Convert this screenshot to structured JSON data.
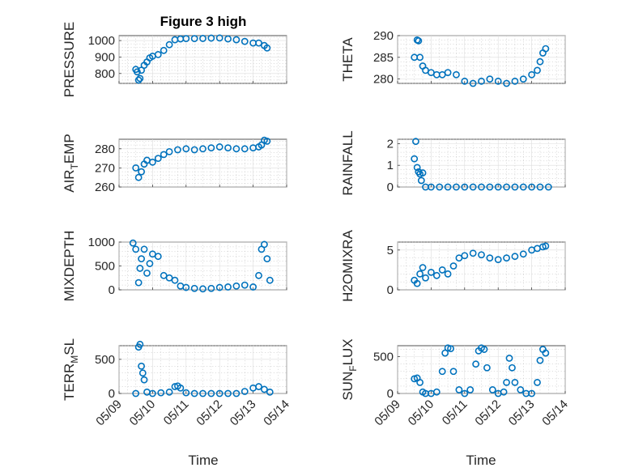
{
  "colors": {
    "marker": "#0072BD",
    "axes": "#262626"
  },
  "chart_data": [
    {
      "type": "scatter",
      "title": "Figure 3 high",
      "ylabel": "PRESSURE",
      "ylim": [
        740,
        1030
      ],
      "yticks": [
        800,
        900,
        1000
      ],
      "xlim": [
        "05/09",
        "05/14"
      ],
      "grid": true,
      "x": [
        "05/09 12:00",
        "05/09 13:00",
        "05/09 14:00",
        "05/09 15:00",
        "05/09 16:00",
        "05/09 18:00",
        "05/09 20:00",
        "05/09 22:00",
        "05/10 00:00",
        "05/10 04:00",
        "05/10 08:00",
        "05/10 12:00",
        "05/10 16:00",
        "05/10 20:00",
        "05/11 00:00",
        "05/11 06:00",
        "05/11 12:00",
        "05/11 18:00",
        "05/12 00:00",
        "05/12 06:00",
        "05/12 12:00",
        "05/12 18:00",
        "05/13 00:00",
        "05/13 04:00",
        "05/13 08:00",
        "05/13 10:00"
      ],
      "y": [
        825,
        810,
        760,
        770,
        820,
        850,
        870,
        895,
        905,
        915,
        940,
        975,
        1005,
        1010,
        1012,
        1012,
        1013,
        1015,
        1016,
        1010,
        1005,
        995,
        985,
        985,
        970,
        955
      ]
    },
    {
      "type": "scatter",
      "title": "",
      "ylabel": "THETA",
      "ylim": [
        279,
        290
      ],
      "yticks": [
        280,
        285,
        290
      ],
      "xlim": [
        "05/09",
        "05/14"
      ],
      "grid": true,
      "x": [
        "05/09 12:00",
        "05/09 14:00",
        "05/09 15:00",
        "05/09 16:00",
        "05/09 18:00",
        "05/09 20:00",
        "05/10 00:00",
        "05/10 04:00",
        "05/10 08:00",
        "05/10 12:00",
        "05/10 18:00",
        "05/11 00:00",
        "05/11 06:00",
        "05/11 12:00",
        "05/11 18:00",
        "05/12 00:00",
        "05/12 06:00",
        "05/12 12:00",
        "05/12 18:00",
        "05/13 00:00",
        "05/13 04:00",
        "05/13 06:00",
        "05/13 08:00",
        "05/13 10:00"
      ],
      "y": [
        285,
        289,
        288.8,
        285,
        283,
        282,
        281.5,
        281,
        281,
        281.5,
        281,
        279.5,
        279,
        279.5,
        280,
        279.5,
        279,
        279.5,
        280,
        281,
        282,
        284,
        286,
        287
      ]
    },
    {
      "type": "scatter",
      "title": "",
      "ylabel": "AIR_TEMP",
      "ylim": [
        260,
        285
      ],
      "yticks": [
        260,
        270,
        280
      ],
      "xlim": [
        "05/09",
        "05/14"
      ],
      "grid": true,
      "x": [
        "05/09 12:00",
        "05/09 14:00",
        "05/09 16:00",
        "05/09 18:00",
        "05/09 20:00",
        "05/10 00:00",
        "05/10 04:00",
        "05/10 08:00",
        "05/10 12:00",
        "05/10 18:00",
        "05/11 00:00",
        "05/11 06:00",
        "05/11 12:00",
        "05/11 18:00",
        "05/12 00:00",
        "05/12 06:00",
        "05/12 12:00",
        "05/12 18:00",
        "05/13 00:00",
        "05/13 04:00",
        "05/13 06:00",
        "05/13 08:00",
        "05/13 10:00"
      ],
      "y": [
        270,
        265,
        268,
        272,
        274,
        273,
        275,
        277,
        278.5,
        279.5,
        280,
        279.5,
        280,
        280.5,
        281,
        280.5,
        280,
        280,
        280.5,
        281,
        282,
        284.5,
        284
      ]
    },
    {
      "type": "scatter",
      "title": "",
      "ylabel": "RAINFALL",
      "ylim": [
        0,
        2.2
      ],
      "yticks": [
        0,
        1,
        2
      ],
      "xlim": [
        "05/09",
        "05/14"
      ],
      "grid": true,
      "x": [
        "05/09 12:00",
        "05/09 13:00",
        "05/09 14:00",
        "05/09 15:00",
        "05/09 16:00",
        "05/09 17:00",
        "05/09 18:00",
        "05/09 20:00",
        "05/10 00:00",
        "05/10 06:00",
        "05/10 12:00",
        "05/10 18:00",
        "05/11 00:00",
        "05/11 06:00",
        "05/11 12:00",
        "05/11 18:00",
        "05/12 00:00",
        "05/12 06:00",
        "05/12 12:00",
        "05/12 18:00",
        "05/13 00:00",
        "05/13 06:00",
        "05/13 12:00"
      ],
      "y": [
        1.3,
        2.1,
        0.9,
        0.7,
        0.6,
        0.3,
        0.65,
        0,
        0,
        0,
        0,
        0,
        0,
        0,
        0,
        0,
        0,
        0,
        0,
        0,
        0,
        0,
        0
      ]
    },
    {
      "type": "scatter",
      "title": "",
      "ylabel": "MIXDEPTH",
      "ylim": [
        0,
        1000
      ],
      "yticks": [
        0,
        500,
        1000
      ],
      "xlim": [
        "05/09",
        "05/14"
      ],
      "grid": true,
      "x": [
        "05/09 10:00",
        "05/09 12:00",
        "05/09 14:00",
        "05/09 15:00",
        "05/09 16:00",
        "05/09 18:00",
        "05/09 20:00",
        "05/09 22:00",
        "05/10 00:00",
        "05/10 04:00",
        "05/10 08:00",
        "05/10 12:00",
        "05/10 16:00",
        "05/10 20:00",
        "05/11 00:00",
        "05/11 06:00",
        "05/11 12:00",
        "05/11 18:00",
        "05/12 00:00",
        "05/12 06:00",
        "05/12 12:00",
        "05/12 18:00",
        "05/13 00:00",
        "05/13 04:00",
        "05/13 06:00",
        "05/13 08:00",
        "05/13 10:00",
        "05/13 12:00"
      ],
      "y": [
        980,
        850,
        150,
        450,
        650,
        850,
        350,
        550,
        750,
        700,
        300,
        250,
        200,
        80,
        50,
        30,
        20,
        30,
        50,
        60,
        80,
        100,
        60,
        300,
        850,
        950,
        650,
        200
      ]
    },
    {
      "type": "scatter",
      "title": "",
      "ylabel": "H2OMIXRA",
      "ylim": [
        0,
        6
      ],
      "yticks": [
        0,
        5
      ],
      "xlim": [
        "05/09",
        "05/14"
      ],
      "grid": true,
      "x": [
        "05/09 12:00",
        "05/09 14:00",
        "05/09 16:00",
        "05/09 18:00",
        "05/09 20:00",
        "05/10 00:00",
        "05/10 04:00",
        "05/10 08:00",
        "05/10 12:00",
        "05/10 16:00",
        "05/10 20:00",
        "05/11 00:00",
        "05/11 06:00",
        "05/11 12:00",
        "05/11 18:00",
        "05/12 00:00",
        "05/12 06:00",
        "05/12 12:00",
        "05/12 18:00",
        "05/13 00:00",
        "05/13 04:00",
        "05/13 08:00",
        "05/13 10:00"
      ],
      "y": [
        1.2,
        0.8,
        2.0,
        2.8,
        1.5,
        2.2,
        1.8,
        2.5,
        2.0,
        3.0,
        4.0,
        4.3,
        4.6,
        4.4,
        4.0,
        3.8,
        4.0,
        4.2,
        4.5,
        5.0,
        5.2,
        5.4,
        5.5
      ]
    },
    {
      "type": "scatter",
      "title": "",
      "ylabel": "TERR_MSL",
      "ylim": [
        0,
        700
      ],
      "yticks": [
        0,
        500
      ],
      "xlim": [
        "05/09",
        "05/14"
      ],
      "grid": true,
      "x": [
        "05/09 12:00",
        "05/09 14:00",
        "05/09 15:00",
        "05/09 16:00",
        "05/09 17:00",
        "05/09 18:00",
        "05/09 20:00",
        "05/10 00:00",
        "05/10 06:00",
        "05/10 12:00",
        "05/10 16:00",
        "05/10 18:00",
        "05/10 20:00",
        "05/11 00:00",
        "05/11 06:00",
        "05/11 12:00",
        "05/11 18:00",
        "05/12 00:00",
        "05/12 06:00",
        "05/12 12:00",
        "05/12 18:00",
        "05/13 00:00",
        "05/13 04:00",
        "05/13 08:00",
        "05/13 12:00"
      ],
      "y": [
        0,
        680,
        720,
        400,
        300,
        200,
        20,
        0,
        10,
        20,
        100,
        110,
        80,
        10,
        0,
        0,
        0,
        0,
        0,
        0,
        30,
        80,
        100,
        60,
        20
      ]
    },
    {
      "type": "scatter",
      "title": "",
      "ylabel": "SUN_FLUX",
      "ylim": [
        0,
        650
      ],
      "yticks": [
        0,
        500
      ],
      "xlim": [
        "05/09",
        "05/14"
      ],
      "grid": true,
      "x": [
        "05/09 12:00",
        "05/09 14:00",
        "05/09 16:00",
        "05/09 18:00",
        "05/09 20:00",
        "05/10 00:00",
        "05/10 04:00",
        "05/10 08:00",
        "05/10 10:00",
        "05/10 12:00",
        "05/10 14:00",
        "05/10 16:00",
        "05/10 20:00",
        "05/11 00:00",
        "05/11 04:00",
        "05/11 08:00",
        "05/11 10:00",
        "05/11 12:00",
        "05/11 14:00",
        "05/11 16:00",
        "05/11 20:00",
        "05/12 00:00",
        "05/12 04:00",
        "05/12 06:00",
        "05/12 08:00",
        "05/12 10:00",
        "05/12 12:00",
        "05/12 16:00",
        "05/12 20:00",
        "05/13 00:00",
        "05/13 04:00",
        "05/13 06:00",
        "05/13 08:00",
        "05/13 10:00"
      ],
      "y": [
        200,
        210,
        150,
        20,
        0,
        0,
        20,
        300,
        550,
        620,
        610,
        300,
        50,
        0,
        50,
        400,
        580,
        620,
        600,
        350,
        50,
        0,
        20,
        150,
        480,
        350,
        150,
        50,
        0,
        0,
        150,
        450,
        600,
        550
      ]
    }
  ],
  "labels": {
    "x_axis_title": "Time",
    "x_tick_labels": [
      "05/09",
      "05/10",
      "05/11",
      "05/12",
      "05/13",
      "05/14"
    ]
  }
}
